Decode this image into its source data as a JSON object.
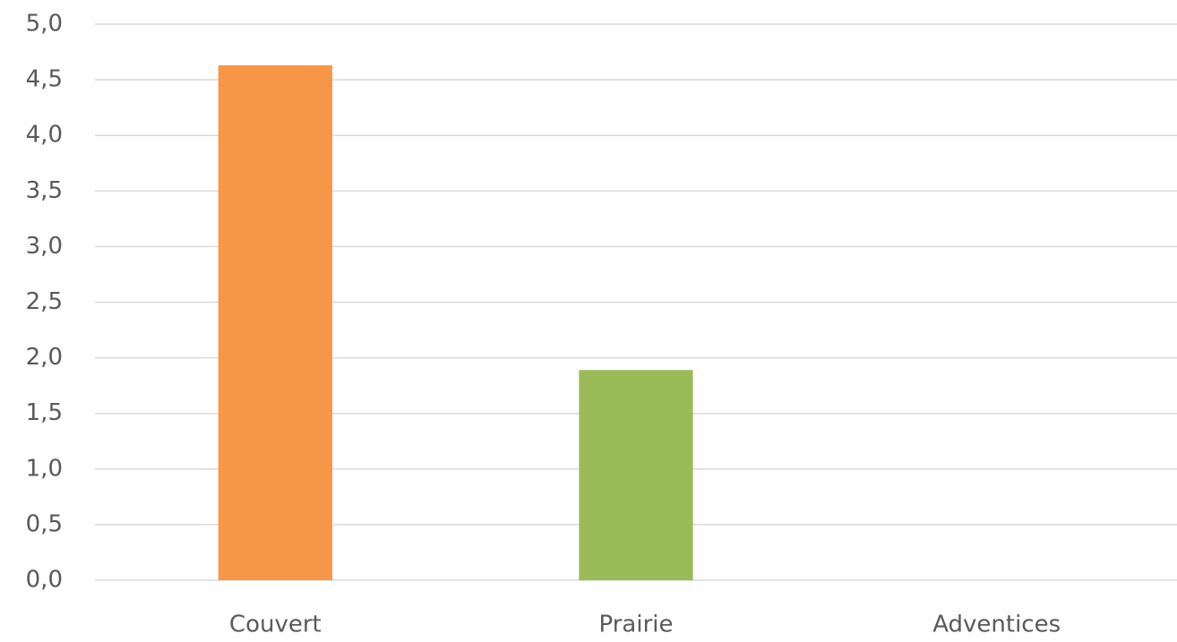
{
  "chart_data": {
    "type": "bar",
    "categories": [
      "Couvert",
      "Prairie",
      "Adventices"
    ],
    "values": [
      4.63,
      1.89,
      0
    ],
    "colors": [
      "#f79646",
      "#9bbb59",
      "#4bacc6"
    ],
    "ylim": [
      0,
      5
    ],
    "yticks": [
      {
        "value": 0,
        "label": "0,0"
      },
      {
        "value": 0.5,
        "label": "0,5"
      },
      {
        "value": 1,
        "label": "1,0"
      },
      {
        "value": 1.5,
        "label": "1,5"
      },
      {
        "value": 2,
        "label": "2,0"
      },
      {
        "value": 2.5,
        "label": "2,5"
      },
      {
        "value": 3,
        "label": "3,0"
      },
      {
        "value": 3.5,
        "label": "3,5"
      },
      {
        "value": 4,
        "label": "4,0"
      },
      {
        "value": 4.5,
        "label": "4,5"
      },
      {
        "value": 5,
        "label": "5,0"
      }
    ],
    "grid": true
  }
}
